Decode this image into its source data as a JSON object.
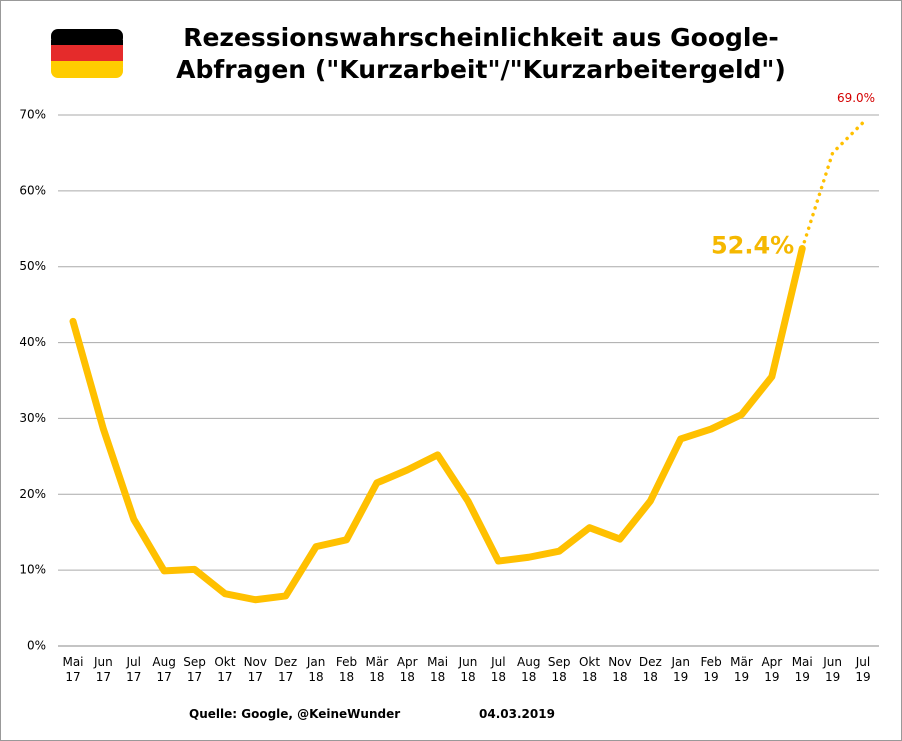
{
  "chart_data": {
    "type": "line",
    "title": [
      "Rezessionswahrscheinlichkeit aus Google-",
      "Abfragen (\"Kurzarbeit\"/\"Kurzarbeitergeld\")"
    ],
    "categories": [
      "Mai 17",
      "Jun 17",
      "Jul 17",
      "Aug 17",
      "Sep 17",
      "Okt 17",
      "Nov 17",
      "Dez 17",
      "Jan 18",
      "Feb 18",
      "Mär 18",
      "Apr 18",
      "Mai 18",
      "Jun 18",
      "Jul 18",
      "Aug 18",
      "Sep 18",
      "Okt 18",
      "Nov 18",
      "Dez 18",
      "Jan 19",
      "Feb 19",
      "Mär 19",
      "Apr 19",
      "Mai 19",
      "Jun 19",
      "Jul 19"
    ],
    "series": [
      {
        "color": "#ffc000",
        "style": "solid",
        "values": [
          42.8,
          28.6,
          16.7,
          9.9,
          10.1,
          6.9,
          6.1,
          6.6,
          13.1,
          14.0,
          21.5,
          23.2,
          25.2,
          19.1,
          11.2,
          11.7,
          12.5,
          15.6,
          14.1,
          19.1,
          27.3,
          28.6,
          30.5,
          35.5,
          52.4,
          null,
          null
        ],
        "value_labels": [
          null,
          null,
          null,
          null,
          null,
          null,
          null,
          null,
          null,
          null,
          null,
          null,
          null,
          null,
          null,
          null,
          null,
          null,
          null,
          null,
          null,
          null,
          null,
          null,
          "52.4%",
          null,
          null
        ]
      },
      {
        "color": "#ffc000",
        "style": "dotted",
        "values": [
          null,
          null,
          null,
          null,
          null,
          null,
          null,
          null,
          null,
          null,
          null,
          null,
          null,
          null,
          null,
          null,
          null,
          null,
          null,
          null,
          null,
          null,
          null,
          null,
          52.4,
          65.0,
          69.0
        ],
        "value_labels": [
          null,
          null,
          null,
          null,
          null,
          null,
          null,
          null,
          null,
          null,
          null,
          null,
          null,
          null,
          null,
          null,
          null,
          null,
          null,
          null,
          null,
          null,
          null,
          null,
          null,
          null,
          "69.0%"
        ]
      }
    ],
    "ylim": [
      0,
      70
    ],
    "yticks": [
      {
        "value": 0,
        "label": "0%"
      },
      {
        "value": 10,
        "label": "10%"
      },
      {
        "value": 20,
        "label": "20%"
      },
      {
        "value": 30,
        "label": "30%"
      },
      {
        "value": 40,
        "label": "40%"
      },
      {
        "value": 50,
        "label": "50%"
      },
      {
        "value": 60,
        "label": "60%"
      },
      {
        "value": 70,
        "label": "70%"
      }
    ],
    "grid": true,
    "source": "Quelle: Google, @KeineWunder",
    "date": "04.03.2019"
  }
}
